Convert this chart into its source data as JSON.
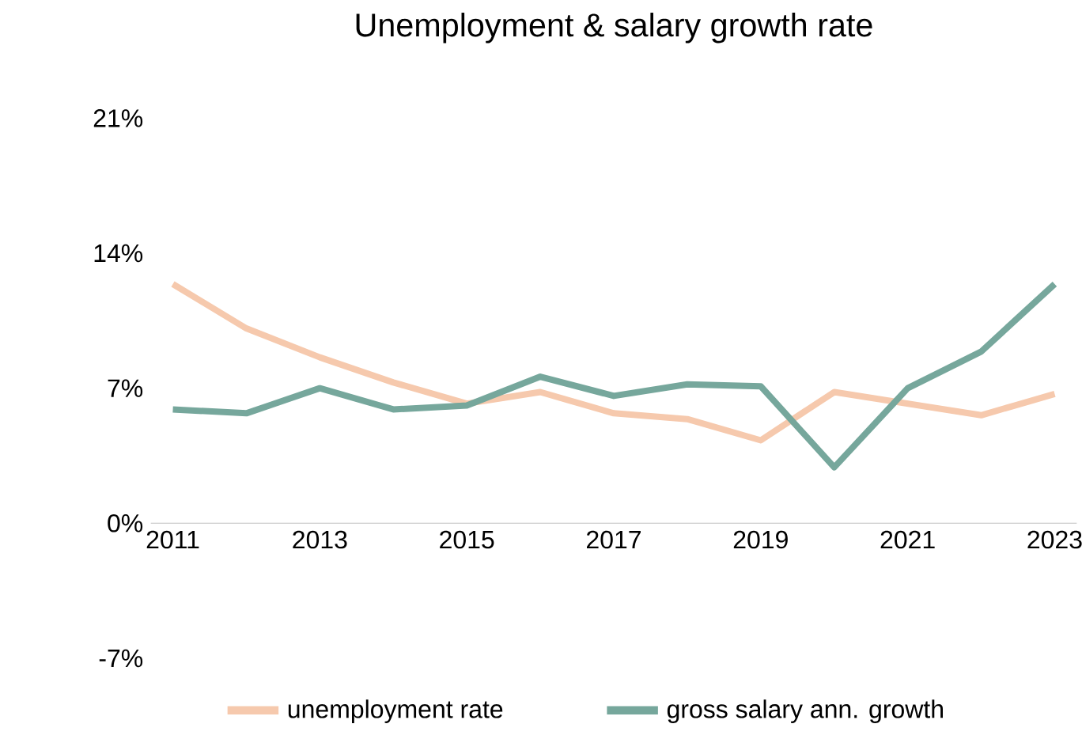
{
  "chart_data": {
    "type": "line",
    "title": "Unemployment & salary growth rate",
    "x": [
      2011,
      2012,
      2013,
      2014,
      2015,
      2016,
      2017,
      2018,
      2019,
      2020,
      2021,
      2022,
      2023
    ],
    "series": [
      {
        "name": "unemployment rate",
        "color": "#f6c9ad",
        "values": [
          12.4,
          10.1,
          8.6,
          7.3,
          6.2,
          6.8,
          5.7,
          5.4,
          4.3,
          6.8,
          6.2,
          5.6,
          6.7
        ]
      },
      {
        "name": "gross salary ann. growth",
        "color": "#76a79c",
        "values": [
          5.9,
          5.7,
          7.0,
          5.9,
          6.1,
          7.6,
          6.6,
          7.2,
          7.1,
          2.9,
          7.0,
          8.9,
          12.4
        ]
      }
    ],
    "xlim": [
      2010.7,
      2023.3
    ],
    "xticks": [
      2011,
      2013,
      2015,
      2017,
      2019,
      2021,
      2023
    ],
    "ylim": [
      -7,
      21
    ],
    "yticks": [
      {
        "value": -7,
        "label": "-7%"
      },
      {
        "value": 0,
        "label": "0%"
      },
      {
        "value": 7,
        "label": "7%"
      },
      {
        "value": 14,
        "label": "14%"
      },
      {
        "value": 21,
        "label": "21%"
      }
    ],
    "grid": false,
    "legend": "bottom",
    "marker": "none",
    "line_style": "solid"
  }
}
